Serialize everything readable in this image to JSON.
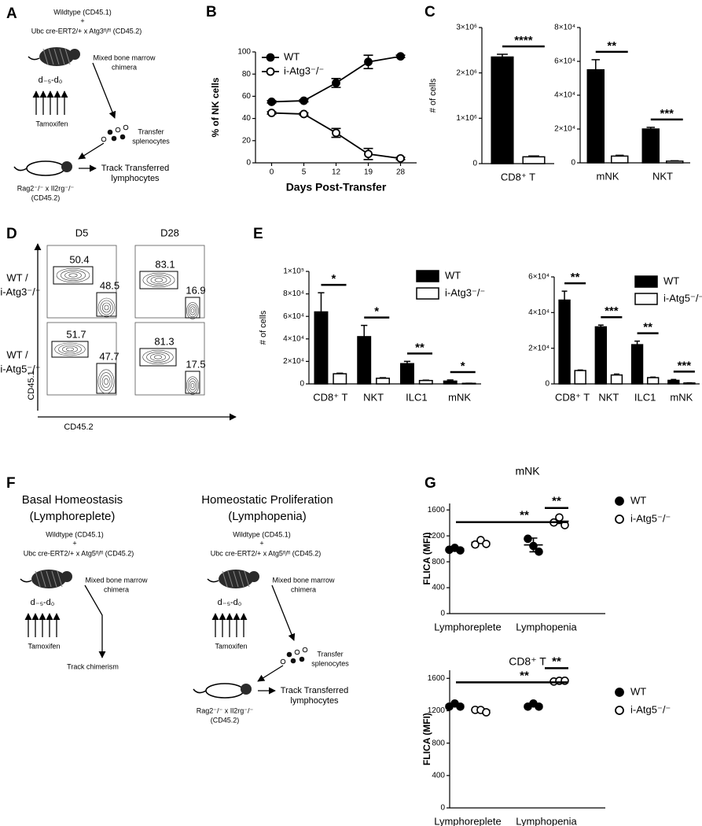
{
  "panel_labels": [
    "A",
    "B",
    "C",
    "D",
    "E",
    "F",
    "G"
  ],
  "diagram_a": {
    "donor1": "Wildtype (CD45.1)",
    "plus": "+",
    "donor2": "Ubc cre-ERT2/+ x Atg3ᶠˡ/ᶠˡ (CD45.2)",
    "chimera": [
      "Mixed bone marrow",
      "chimera"
    ],
    "timing": "d₋₅-d₀",
    "drug": "Tamoxifen",
    "transfer": [
      "Transfer",
      "splenocytes"
    ],
    "track": [
      "Track Transferred",
      "lymphocytes"
    ],
    "host": [
      "Rag2⁻/⁻ x Il2rg⁻/⁻",
      "(CD45.2)"
    ]
  },
  "flow_d": {
    "columns": [
      "D5",
      "D28"
    ],
    "rows": [
      [
        "WT /",
        "i-Atg3⁻/⁻"
      ],
      [
        "WT /",
        "i-Atg5⁻/⁻"
      ]
    ],
    "gates": [
      [
        [
          50.4,
          48.5
        ],
        [
          83.1,
          16.9
        ]
      ],
      [
        [
          51.7,
          47.7
        ],
        [
          81.3,
          17.5
        ]
      ]
    ],
    "xlabel": "CD45.2",
    "ylabel": "CD45.1"
  },
  "diagram_f": {
    "left": {
      "title": [
        "Basal Homeostasis",
        "(Lymphoreplete)"
      ],
      "donor1": "Wildtype (CD45.1)",
      "plus": "+",
      "donor2": "Ubc cre-ERT2/+ x Atg5ᶠˡ/ᶠˡ (CD45.2)",
      "chimera": [
        "Mixed bone marrow",
        "chimera"
      ],
      "timing": "d₋₅-d₀",
      "drug": "Tamoxifen",
      "track": "Track chimerism"
    },
    "right": {
      "title": [
        "Homeostatic Proliferation",
        "(Lymphopenia)"
      ],
      "donor1": "Wildtype (CD45.1)",
      "plus": "+",
      "donor2": "Ubc cre-ERT2/+ x Atg5ᶠˡ/ᶠˡ (CD45.2)",
      "chimera": [
        "Mixed bone marrow",
        "chimera"
      ],
      "timing": "d₋₅-d₀",
      "drug": "Tamoxifen",
      "transfer": [
        "Transfer",
        "splenocytes"
      ],
      "track": [
        "Track Transferred",
        "lymphocytes"
      ],
      "host": [
        "Rag2⁻/⁻ x Il2rg⁻/⁻",
        "(CD45.2)"
      ]
    }
  },
  "chart_data": [
    {
      "type": "line",
      "xlabel": "Days Post-Transfer",
      "ylabel": "% of NK cells",
      "categories": [
        "0",
        "5",
        "12",
        "19",
        "28"
      ],
      "ylim": [
        0,
        100
      ],
      "yticks": [
        0,
        20,
        40,
        60,
        80,
        100
      ],
      "legend": "upper left",
      "series": [
        {
          "name": "WT",
          "color": "#000000",
          "fill": "#000000",
          "values": [
            55,
            56,
            72,
            91,
            96
          ],
          "errors": [
            1,
            1,
            4,
            6,
            1
          ]
        },
        {
          "name": "i-Atg3⁻/⁻",
          "color": "#000000",
          "fill": "#ffffff",
          "values": [
            45,
            44,
            27,
            8,
            4
          ],
          "errors": [
            1,
            1,
            4,
            5,
            1
          ]
        }
      ]
    },
    {
      "type": "bar",
      "ylabel": "# of cells",
      "categories": [
        "CD8⁺ T"
      ],
      "ylim": [
        0,
        3000000
      ],
      "yticks": [
        0,
        {
          "value": 1000000,
          "label": "1×10⁶"
        },
        {
          "value": 2000000,
          "label": "2×10⁶"
        },
        {
          "value": 3000000,
          "label": "3×10⁶"
        }
      ],
      "series": [
        {
          "color": "#000000",
          "fill": "#000000",
          "values": [
            2350000
          ],
          "errors": [
            60000
          ]
        },
        {
          "color": "#000000",
          "fill": "#ffffff",
          "values": [
            150000
          ],
          "errors": [
            20000
          ]
        }
      ],
      "significance": [
        "****"
      ]
    },
    {
      "type": "bar",
      "categories": [
        "mNK",
        "NKT"
      ],
      "ylim": [
        0,
        80000
      ],
      "yticks": [
        0,
        {
          "value": 20000,
          "label": "2×10⁴"
        },
        {
          "value": 40000,
          "label": "4×10⁴"
        },
        {
          "value": 60000,
          "label": "6×10⁴"
        },
        {
          "value": 80000,
          "label": "8×10⁴"
        }
      ],
      "series": [
        {
          "color": "#000000",
          "fill": "#000000",
          "values": [
            55000,
            20000
          ],
          "errors": [
            6000,
            1000
          ]
        },
        {
          "color": "#000000",
          "fill": "#ffffff",
          "values": [
            4000,
            1000
          ],
          "errors": [
            500,
            200
          ]
        }
      ],
      "significance": [
        "**",
        "***"
      ]
    },
    {
      "type": "bar",
      "ylabel": "# of cells",
      "categories": [
        "CD8⁺ T",
        "NKT",
        "ILC1",
        "mNK"
      ],
      "ylim": [
        0,
        100000
      ],
      "yticks": [
        0,
        {
          "value": 20000,
          "label": "2×10⁴"
        },
        {
          "value": 40000,
          "label": "4×10⁴"
        },
        {
          "value": 60000,
          "label": "6×10⁴"
        },
        {
          "value": 80000,
          "label": "8×10⁴"
        },
        {
          "value": 100000,
          "label": "1×10⁵"
        }
      ],
      "legend": "upper right",
      "series": [
        {
          "name": "WT",
          "color": "#000000",
          "fill": "#000000",
          "values": [
            64000,
            42000,
            18000,
            2500
          ],
          "errors": [
            17000,
            10000,
            2000,
            1000
          ]
        },
        {
          "name": "i-Atg3⁻/⁻",
          "color": "#000000",
          "fill": "#ffffff",
          "values": [
            9000,
            5000,
            3000,
            500
          ],
          "errors": [
            500,
            500,
            300,
            100
          ]
        }
      ],
      "significance": [
        "*",
        "*",
        "**",
        "*"
      ]
    },
    {
      "type": "bar",
      "categories": [
        "CD8⁺ T",
        "NKT",
        "ILC1",
        "mNK"
      ],
      "ylim": [
        0,
        60000
      ],
      "yticks": [
        0,
        {
          "value": 20000,
          "label": "2×10⁴"
        },
        {
          "value": 40000,
          "label": "4×10⁴"
        },
        {
          "value": 60000,
          "label": "6×10⁴"
        }
      ],
      "legend": "upper right",
      "series": [
        {
          "name": "WT",
          "color": "#000000",
          "fill": "#000000",
          "values": [
            47000,
            32000,
            22000,
            2000
          ],
          "errors": [
            5000,
            1000,
            2000,
            500
          ]
        },
        {
          "name": "i-Atg5⁻/⁻",
          "color": "#000000",
          "fill": "#ffffff",
          "values": [
            7500,
            5000,
            3500,
            500
          ],
          "errors": [
            300,
            500,
            300,
            100
          ]
        }
      ],
      "significance": [
        "**",
        "***",
        "**",
        "***"
      ]
    },
    {
      "type": "dot",
      "title": "mNK",
      "ylabel": "FLICA (MFI)",
      "categories": [
        "Lymphoreplete",
        "Lymphopenia"
      ],
      "ylim": [
        0,
        1700
      ],
      "yticks": [
        0,
        400,
        800,
        1200,
        1600
      ],
      "legend": "right",
      "series": [
        {
          "name": "WT",
          "color": "#000000",
          "fill": "#000000",
          "values": [
            [
              1010,
              990,
              1000
            ],
            [
              1180,
              1020,
              980
            ]
          ]
        },
        {
          "name": "i-Atg5⁻/⁻",
          "color": "#000000",
          "fill": "#ffffff",
          "values": [
            [
              1090,
              1110,
              1100
            ],
            [
              1430,
              1460,
              1390
            ]
          ]
        }
      ],
      "significance": [
        "**",
        "**"
      ]
    },
    {
      "type": "dot",
      "title": "CD8⁺ T",
      "ylabel": "FLICA (MFI)",
      "categories": [
        "Lymphoreplete",
        "Lymphopenia"
      ],
      "ylim": [
        0,
        1700
      ],
      "yticks": [
        0,
        400,
        800,
        1200,
        1600
      ],
      "legend": "right",
      "series": [
        {
          "name": "WT",
          "color": "#000000",
          "fill": "#000000",
          "values": [
            [
              1270,
              1270,
              1270
            ],
            [
              1270,
              1270,
              1270
            ]
          ]
        },
        {
          "name": "i-Atg5⁻/⁻",
          "color": "#000000",
          "fill": "#ffffff",
          "values": [
            [
              1230,
              1190,
              1200
            ],
            [
              1580,
              1550,
              1590
            ]
          ]
        }
      ],
      "significance": [
        "**",
        "**"
      ]
    }
  ]
}
